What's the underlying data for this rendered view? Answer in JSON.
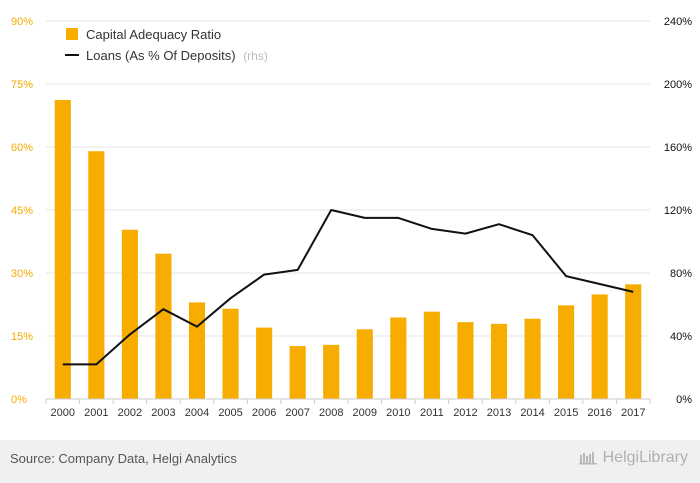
{
  "chart_data": {
    "type": "bar",
    "categories": [
      "2000",
      "2001",
      "2002",
      "2003",
      "2004",
      "2005",
      "2006",
      "2007",
      "2008",
      "2009",
      "2010",
      "2011",
      "2012",
      "2013",
      "2014",
      "2015",
      "2016",
      "2017"
    ],
    "series": [
      {
        "name": "Capital Adequacy Ratio",
        "type": "bar",
        "axis": "left",
        "color": "#f7ac00",
        "values": [
          71.2,
          59.0,
          40.3,
          34.6,
          23.0,
          21.5,
          17.0,
          12.6,
          12.9,
          16.6,
          19.4,
          20.8,
          18.3,
          17.9,
          19.1,
          22.3,
          24.9,
          27.3
        ]
      },
      {
        "name": "Loans (As % Of Deposits)",
        "name_suffix": "(rhs)",
        "type": "line",
        "axis": "right",
        "color": "#111111",
        "values": [
          22,
          22,
          41,
          57,
          46,
          64,
          79,
          82,
          120,
          115,
          115,
          108,
          105,
          111,
          104,
          78,
          73,
          68
        ]
      }
    ],
    "y_left": {
      "ticks": [
        "0%",
        "15%",
        "30%",
        "45%",
        "60%",
        "75%",
        "90%"
      ],
      "range": [
        0,
        90
      ],
      "step": 15,
      "color": "#f7ac00"
    },
    "y_right": {
      "ticks": [
        "0%",
        "40%",
        "80%",
        "120%",
        "160%",
        "200%",
        "240%"
      ],
      "range": [
        0,
        240
      ],
      "step": 40,
      "color": "#111111"
    },
    "grid": true,
    "legend_position": "top-left"
  },
  "footer": {
    "source": "Source: Company Data, Helgi Analytics",
    "brand": "HelgiLibrary"
  }
}
